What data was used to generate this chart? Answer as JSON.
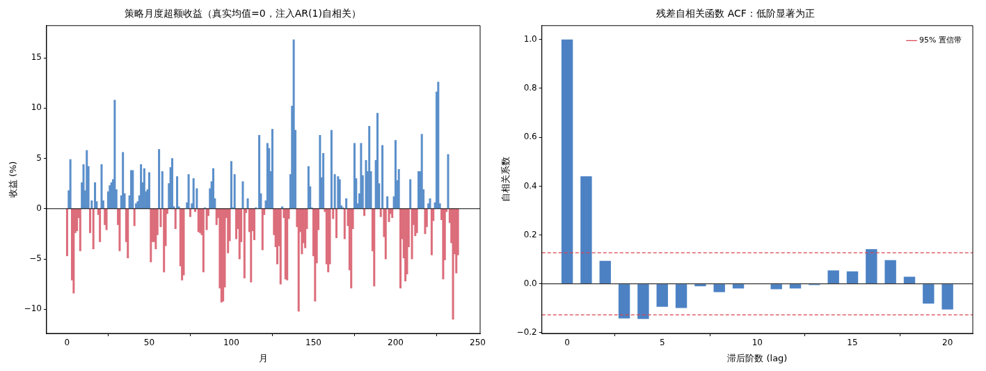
{
  "chart_data": [
    {
      "type": "bar",
      "title": "策略月度超额收益（真实均值=0，注入AR(1)自相关）",
      "xlabel": "月",
      "ylabel": "收益 (%)",
      "x": [
        0,
        1,
        2,
        3,
        4,
        5,
        6,
        7,
        8,
        9,
        10,
        11,
        12,
        13,
        14,
        15,
        16,
        17,
        18,
        19,
        20,
        21,
        22,
        23,
        24,
        25,
        26,
        27,
        28,
        29,
        30,
        31,
        32,
        33,
        34,
        35,
        36,
        37,
        38,
        39,
        40,
        41,
        42,
        43,
        44,
        45,
        46,
        47,
        48,
        49,
        50,
        51,
        52,
        53,
        54,
        55,
        56,
        57,
        58,
        59,
        60,
        61,
        62,
        63,
        64,
        65,
        66,
        67,
        68,
        69,
        70,
        71,
        72,
        73,
        74,
        75,
        76,
        77,
        78,
        79,
        80,
        81,
        82,
        83,
        84,
        85,
        86,
        87,
        88,
        89,
        90,
        91,
        92,
        93,
        94,
        95,
        96,
        97,
        98,
        99,
        100,
        101,
        102,
        103,
        104,
        105,
        106,
        107,
        108,
        109,
        110,
        111,
        112,
        113,
        114,
        115,
        116,
        117,
        118,
        119,
        120,
        121,
        122,
        123,
        124,
        125,
        126,
        127,
        128,
        129,
        130,
        131,
        132,
        133,
        134,
        135,
        136,
        137,
        138,
        139,
        140,
        141,
        142,
        143,
        144,
        145,
        146,
        147,
        148,
        149,
        150,
        151,
        152,
        153,
        154,
        155,
        156,
        157,
        158,
        159,
        160,
        161,
        162,
        163,
        164,
        165,
        166,
        167,
        168,
        169,
        170,
        171,
        172,
        173,
        174,
        175,
        176,
        177,
        178,
        179,
        180,
        181,
        182,
        183,
        184,
        185,
        186,
        187,
        188,
        189,
        190,
        191,
        192,
        193,
        194,
        195,
        196,
        197,
        198,
        199,
        200,
        201,
        202,
        203,
        204,
        205,
        206,
        207,
        208,
        209,
        210,
        211,
        212,
        213,
        214,
        215,
        216,
        217,
        218,
        219,
        220,
        221,
        222,
        223,
        224,
        225,
        226,
        227,
        228,
        229,
        230,
        231,
        232,
        233,
        234,
        235,
        236,
        237,
        238
      ],
      "values": [
        -4.7,
        1.8,
        4.9,
        -7.1,
        -8.4,
        -2.4,
        -2.2,
        -0.9,
        -4.2,
        2.6,
        4.4,
        1.8,
        5.8,
        4.2,
        -2.4,
        0.8,
        -4.0,
        2.6,
        0.7,
        -0.6,
        -3.3,
        4.4,
        0.8,
        -1.6,
        -2.1,
        1.7,
        2.3,
        2.6,
        2.9,
        10.8,
        1.9,
        -1.6,
        -4.2,
        1.3,
        5.6,
        1.5,
        -3.3,
        -4.9,
        1.3,
        3.8,
        3.8,
        -1.7,
        0.5,
        0.7,
        1.3,
        4.4,
        2.6,
        4.0,
        1.7,
        1.9,
        3.6,
        -5.3,
        -3.3,
        -3.3,
        -4.0,
        -2.6,
        5.9,
        -1.8,
        3.7,
        -6.3,
        -3.7,
        -0.5,
        2.5,
        4.1,
        5.0,
        0.2,
        -2.0,
        3.2,
        0.2,
        -5.7,
        -7.1,
        -6.6,
        null,
        0.6,
        3.4,
        -0.8,
        0.5,
        3.0,
        -0.3,
        2.0,
        -2.3,
        -2.4,
        -2.6,
        -6.3,
        0.1,
        -2.1,
        -0.7,
        2.0,
        2.7,
        4.0,
        1.0,
        -1.6,
        -0.9,
        -7.9,
        -9.3,
        -9.2,
        -7.8,
        -0.9,
        -4.4,
        -3.2,
        4.7,
        0.1,
        3.4,
        -3.0,
        -2.0,
        -5.0,
        -3.3,
        2.7,
        -6.9,
        -0.4,
        1.0,
        -2.3,
        -7.3,
        -2.2,
        -3.1,
        0.1,
        null,
        7.3,
        1.5,
        -4.1,
        -0.6,
        0.8,
        6.5,
        6.0,
        3.7,
        7.9,
        -2.6,
        -3.8,
        -5.5,
        -3.7,
        -7.5,
        0.2,
        -0.9,
        -7.0,
        -7.1,
        -1.0,
        3.4,
        10.2,
        16.8,
        7.8,
        -1.8,
        -10.2,
        -2.3,
        -4.5,
        -3.4,
        -3.9,
        -2.0,
        4.2,
        2.2,
        0.1,
        -4.7,
        -9.2,
        -5.4,
        -2.1,
        7.3,
        3.1,
        5.5,
        -0.3,
        -5.5,
        -6.3,
        -5.5,
        7.8,
        -1.0,
        3.4,
        -2.9,
        3.2,
        2.9,
        0.3,
        0.1,
        -3.0,
        1.0,
        -1.7,
        -6.1,
        -7.9,
        -2.0,
        6.5,
        3.0,
        0.5,
        1.5,
        6.5,
        3.3,
        -0.7,
        4.8,
        3.7,
        8.2,
        3.7,
        -4.2,
        -7.7,
        4.8,
        9.5,
        2.5,
        -0.8,
        6.3,
        -2.8,
        -5.0,
        1.2,
        -1.3,
        -0.5,
        -0.9,
        1.2,
        6.8,
        2.8,
        3.9,
        -7.9,
        -3.0,
        -4.9,
        -7.2,
        -6.5,
        -3.8,
        2.9,
        -5.0,
        -1.6,
        -2.7,
        -2.4,
        3.7,
        3.7,
        7.4,
        1.9,
        -2.5,
        -1.8,
        0.5,
        1.0,
        -4.6,
        -1.2,
        0.6,
        11.6,
        12.6,
        0.5,
        -1.1,
        -7.0,
        -5.1,
        -0.3,
        5.4,
        -1.4,
        -3.4,
        -11.0,
        -4.5,
        -6.4,
        -4.6
      ],
      "colors": [
        "#dc6d7b",
        "#5b8fca",
        "#5b8fca",
        "#dc6d7b",
        "#dc6d7b",
        "#dc6d7b",
        "#dc6d7b",
        "#dc6d7b",
        "#dc6d7b",
        "#5b8fca",
        "#5b8fca",
        "#5b8fca",
        "#5b8fca",
        "#5b8fca",
        "#dc6d7b",
        "#5b8fca",
        "#dc6d7b",
        "#5b8fca",
        "#5b8fca",
        "#dc6d7b",
        "#dc6d7b",
        "#5b8fca",
        "#5b8fca",
        "#dc6d7b",
        "#dc6d7b",
        "#5b8fca",
        "#5b8fca",
        "#5b8fca",
        "#5b8fca",
        "#5b8fca",
        "#5b8fca",
        "#dc6d7b",
        "#dc6d7b",
        "#5b8fca",
        "#5b8fca",
        "#5b8fca",
        "#dc6d7b",
        "#dc6d7b",
        "#5b8fca",
        "#5b8fca",
        "#5b8fca",
        "#dc6d7b",
        "#5b8fca",
        "#5b8fca",
        "#5b8fca",
        "#5b8fca",
        "#5b8fca",
        "#5b8fca",
        "#5b8fca",
        "#5b8fca",
        "#5b8fca",
        "#dc6d7b",
        "#dc6d7b",
        "#dc6d7b",
        "#dc6d7b",
        "#dc6d7b",
        "#5b8fca",
        "#dc6d7b",
        "#5b8fca",
        "#dc6d7b",
        "#dc6d7b",
        "#dc6d7b",
        "#5b8fca",
        "#5b8fca",
        "#5b8fca",
        "#5b8fca",
        "#dc6d7b",
        "#5b8fca",
        "#5b8fca",
        "#dc6d7b",
        "#dc6d7b",
        "#dc6d7b",
        "#5b8fca",
        "#5b8fca",
        "#5b8fca",
        "#dc6d7b",
        "#5b8fca",
        "#5b8fca",
        "#dc6d7b",
        "#5b8fca",
        "#dc6d7b",
        "#dc6d7b",
        "#dc6d7b",
        "#dc6d7b",
        "#5b8fca",
        "#dc6d7b",
        "#dc6d7b",
        "#5b8fca",
        "#5b8fca",
        "#5b8fca",
        "#5b8fca",
        "#dc6d7b",
        "#dc6d7b",
        "#dc6d7b",
        "#dc6d7b",
        "#dc6d7b",
        "#dc6d7b",
        "#dc6d7b",
        "#dc6d7b",
        "#dc6d7b",
        "#5b8fca",
        "#5b8fca",
        "#5b8fca",
        "#dc6d7b",
        "#dc6d7b",
        "#dc6d7b",
        "#dc6d7b",
        "#5b8fca",
        "#dc6d7b",
        "#dc6d7b",
        "#5b8fca",
        "#dc6d7b",
        "#dc6d7b",
        "#dc6d7b",
        "#dc6d7b",
        "#5b8fca",
        "#5b8fca",
        "#5b8fca",
        "#5b8fca",
        "#dc6d7b",
        "#dc6d7b",
        "#5b8fca",
        "#5b8fca",
        "#5b8fca",
        "#5b8fca",
        "#5b8fca",
        "#dc6d7b",
        "#dc6d7b",
        "#dc6d7b",
        "#dc6d7b",
        "#dc6d7b",
        "#5b8fca",
        "#dc6d7b",
        "#dc6d7b",
        "#dc6d7b",
        "#dc6d7b",
        "#5b8fca",
        "#5b8fca",
        "#5b8fca",
        "#5b8fca",
        "#dc6d7b",
        "#dc6d7b",
        "#dc6d7b",
        "#dc6d7b",
        "#dc6d7b",
        "#dc6d7b",
        "#dc6d7b",
        "#5b8fca",
        "#5b8fca",
        "#5b8fca",
        "#dc6d7b",
        "#dc6d7b",
        "#dc6d7b",
        "#dc6d7b",
        "#5b8fca",
        "#5b8fca",
        "#5b8fca",
        "#dc6d7b",
        "#dc6d7b",
        "#dc6d7b",
        "#dc6d7b",
        "#5b8fca",
        "#dc6d7b",
        "#5b8fca",
        "#dc6d7b",
        "#5b8fca",
        "#5b8fca",
        "#5b8fca",
        "#5b8fca",
        "#dc6d7b",
        "#5b8fca",
        "#dc6d7b",
        "#dc6d7b",
        "#dc6d7b",
        "#dc6d7b",
        "#5b8fca",
        "#5b8fca",
        "#5b8fca",
        "#5b8fca",
        "#5b8fca",
        "#5b8fca",
        "#dc6d7b",
        "#5b8fca",
        "#5b8fca",
        "#5b8fca",
        "#5b8fca",
        "#dc6d7b",
        "#dc6d7b",
        "#5b8fca",
        "#5b8fca",
        "#5b8fca",
        "#dc6d7b",
        "#5b8fca",
        "#dc6d7b",
        "#dc6d7b",
        "#5b8fca",
        "#dc6d7b",
        "#dc6d7b",
        "#dc6d7b",
        "#5b8fca",
        "#5b8fca",
        "#5b8fca",
        "#5b8fca",
        "#dc6d7b",
        "#dc6d7b",
        "#dc6d7b",
        "#dc6d7b",
        "#dc6d7b",
        "#dc6d7b",
        "#5b8fca",
        "#dc6d7b",
        "#dc6d7b",
        "#dc6d7b",
        "#dc6d7b",
        "#5b8fca",
        "#5b8fca",
        "#5b8fca",
        "#5b8fca",
        "#dc6d7b",
        "#dc6d7b",
        "#5b8fca",
        "#5b8fca",
        "#dc6d7b",
        "#dc6d7b",
        "#5b8fca",
        "#5b8fca",
        "#5b8fca",
        "#5b8fca",
        "#dc6d7b",
        "#dc6d7b",
        "#dc6d7b",
        "#dc6d7b",
        "#5b8fca",
        "#dc6d7b",
        "#dc6d7b",
        "#dc6d7b",
        "#dc6d7b",
        "#dc6d7b",
        "#dc6d7b"
      ],
      "xlim": [
        -12.5,
        251.5
      ],
      "xticks": [
        0,
        50,
        100,
        150,
        200,
        250
      ],
      "ylim": [
        -12.4,
        18.2
      ],
      "yticks": [
        {
          "value": -10,
          "label": "−10"
        },
        {
          "value": -5,
          "label": "−5"
        },
        0,
        5,
        10,
        15
      ],
      "ref_lines": [
        {
          "axis": "y",
          "value": 0,
          "color": "#000000",
          "line_style": "solid"
        }
      ]
    },
    {
      "type": "bar",
      "title": "残差自相关函数 ACF：低阶显著为正",
      "xlabel": "滞后阶数 (lag)",
      "ylabel": "自相关系数",
      "x": [
        0,
        1,
        2,
        3,
        4,
        5,
        6,
        7,
        8,
        9,
        10,
        11,
        12,
        13,
        14,
        15,
        16,
        17,
        18,
        19,
        20
      ],
      "values": [
        1.0,
        0.44,
        0.094,
        -0.142,
        -0.144,
        -0.094,
        -0.099,
        -0.01,
        -0.034,
        -0.019,
        null,
        -0.022,
        -0.019,
        -0.005,
        0.055,
        0.051,
        0.142,
        0.097,
        0.029,
        -0.081,
        -0.105
      ],
      "color": "#4c82c4",
      "xlim": [
        -1.33,
        21.33
      ],
      "xticks": [
        0,
        5,
        10,
        15,
        20
      ],
      "ylim": [
        -0.203,
        1.057
      ],
      "yticks": [
        {
          "value": -0.2,
          "label": "−0.2"
        },
        {
          "value": 0,
          "label": "0.0"
        },
        {
          "value": 0.2,
          "label": "0.2"
        },
        {
          "value": 0.4,
          "label": "0.4"
        },
        {
          "value": 0.6,
          "label": "0.6"
        },
        {
          "value": 0.8,
          "label": "0.8"
        },
        {
          "value": 1,
          "label": "1.0"
        }
      ],
      "ref_lines": [
        {
          "axis": "y",
          "value": 0,
          "color": "#000000",
          "line_style": "solid"
        },
        {
          "axis": "y",
          "value": 0.127,
          "label": "95% 置信带",
          "color": "#d9434f",
          "line_style": "dashed"
        },
        {
          "axis": "y",
          "value": -0.127,
          "color": "#d9434f",
          "line_style": "dashed"
        }
      ],
      "legend": "top right"
    }
  ]
}
